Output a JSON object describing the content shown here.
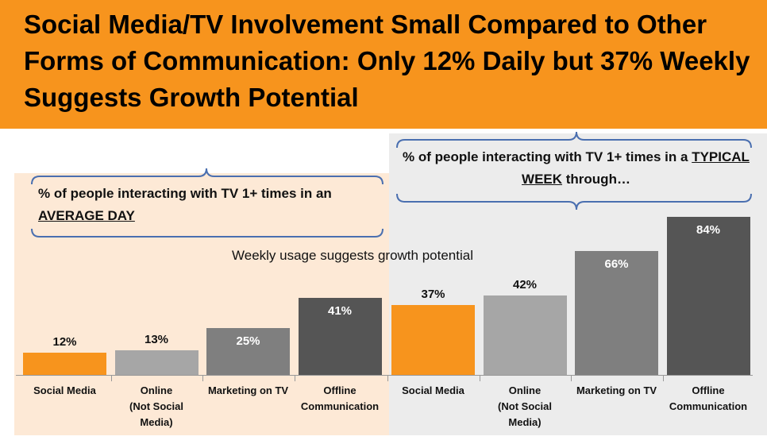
{
  "title": "Social Media/TV Involvement Small Compared to Other Forms of Communication:  Only 12% Daily but 37% Weekly Suggests Growth Potential",
  "callout_day": {
    "text": "% of people interacting with TV 1+ times in an ",
    "underline": "AVERAGE DAY"
  },
  "callout_week": {
    "text": "% of people interacting with TV 1+ times in a ",
    "underline": "TYPICAL WEEK",
    "suffix": " through…"
  },
  "note": "Weekly usage suggests growth potential",
  "colors": {
    "header": "#f7941d",
    "day_panel": "#fde9d6",
    "week_panel": "#ececec",
    "social": "#f7941d",
    "online": "#a6a6a6",
    "marketing": "#7f7f7f",
    "offline": "#555555"
  },
  "chart_data": {
    "type": "bar",
    "ylim": [
      0,
      100
    ],
    "categories": [
      "Social Media",
      "Online (Not Social Media)",
      "Marketing on TV",
      "Offline Communication",
      "Social Media",
      "Online (Not Social Media)",
      "Marketing on TV",
      "Offline Communication"
    ],
    "series": [
      {
        "values": [
          12,
          13,
          25,
          41,
          null,
          null,
          null,
          null
        ]
      },
      {
        "values": [
          null,
          null,
          null,
          null,
          37,
          42,
          66,
          84
        ]
      }
    ],
    "value_labels": [
      "12%",
      "13%",
      "25%",
      "41%",
      "37%",
      "42%",
      "66%",
      "84%"
    ]
  },
  "category_labels": [
    "Social Media",
    "Online\n(Not Social\nMedia)",
    "Marketing on TV",
    "Offline\nCommunication",
    "Social Media",
    "Online\n(Not Social\nMedia)",
    "Marketing on TV",
    "Offline\nCommunication"
  ]
}
